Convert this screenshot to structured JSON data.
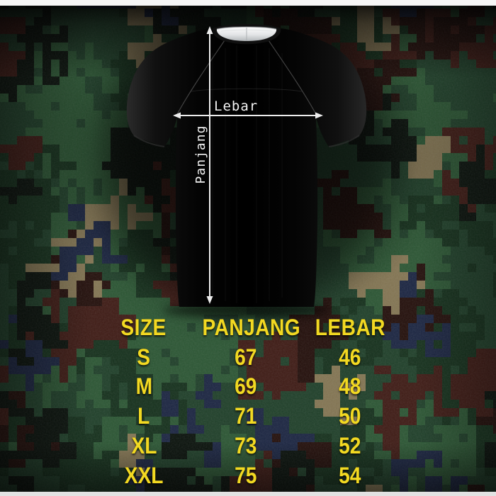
{
  "diagram": {
    "width_label": "Lebar",
    "length_label": "Panjang"
  },
  "size_table": {
    "headers": [
      "SIZE",
      "PANJANG",
      "LEBAR"
    ],
    "rows": [
      {
        "size": "S",
        "panjang": "67",
        "lebar": "46"
      },
      {
        "size": "M",
        "panjang": "69",
        "lebar": "48"
      },
      {
        "size": "L",
        "panjang": "71",
        "lebar": "50"
      },
      {
        "size": "XL",
        "panjang": "73",
        "lebar": "52"
      },
      {
        "size": "XXL",
        "panjang": "75",
        "lebar": "54"
      }
    ]
  },
  "colors": {
    "table_text": "#f2d922",
    "measure_line": "#ededed",
    "camo_base": "#20402a",
    "shirt": "#050505",
    "collar": "#e9ebec"
  },
  "icons": {
    "length_arrow": "double-headed vertical arrow",
    "width_arrow": "double-headed horizontal arrow"
  }
}
